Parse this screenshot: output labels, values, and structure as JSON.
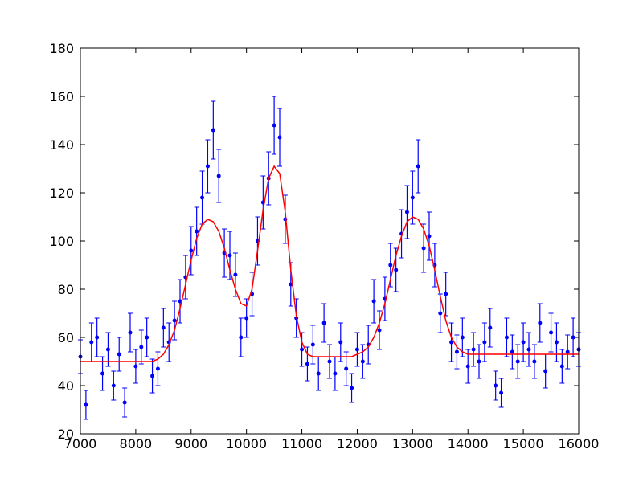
{
  "chart_data": {
    "type": "errorbar",
    "x": [
      7000,
      7100,
      7200,
      7300,
      7400,
      7500,
      7600,
      7700,
      7800,
      7900,
      8000,
      8100,
      8200,
      8300,
      8400,
      8500,
      8600,
      8700,
      8800,
      8900,
      9000,
      9100,
      9200,
      9300,
      9400,
      9500,
      9600,
      9700,
      9800,
      9900,
      10000,
      10100,
      10200,
      10300,
      10400,
      10500,
      10600,
      10700,
      10800,
      10900,
      11000,
      11100,
      11200,
      11300,
      11400,
      11500,
      11600,
      11700,
      11800,
      11900,
      12000,
      12100,
      12200,
      12300,
      12400,
      12500,
      12600,
      12700,
      12800,
      12900,
      13000,
      13100,
      13200,
      13300,
      13400,
      13500,
      13600,
      13700,
      13800,
      13900,
      14000,
      14100,
      14200,
      14300,
      14400,
      14500,
      14600,
      14700,
      14800,
      14900,
      15000,
      15100,
      15200,
      15300,
      15400,
      15500,
      15600,
      15700,
      15800,
      15900,
      16000
    ],
    "series": [
      {
        "color": "#0000ff",
        "values": [
          52,
          32,
          58,
          60,
          45,
          55,
          40,
          53,
          33,
          62,
          48,
          56,
          60,
          44,
          47,
          64,
          58,
          67,
          75,
          85,
          96,
          104,
          118,
          131,
          146,
          127,
          95,
          94,
          86,
          60,
          68,
          78,
          100,
          116,
          126,
          148,
          143,
          109,
          82,
          68,
          55,
          49,
          57,
          45,
          66,
          50,
          45,
          58,
          47,
          39,
          55,
          50,
          57,
          75,
          63,
          76,
          90,
          88,
          103,
          112,
          118,
          131,
          97,
          102,
          90,
          70,
          78,
          58,
          54,
          60,
          48,
          55,
          50,
          58,
          64,
          40,
          37,
          60,
          54,
          50,
          58,
          55,
          50,
          66,
          46,
          62,
          58,
          48,
          54,
          60,
          55
        ],
        "errors": [
          7,
          6,
          8,
          8,
          7,
          7,
          6,
          7,
          6,
          8,
          7,
          7,
          8,
          7,
          7,
          8,
          8,
          8,
          9,
          9,
          10,
          10,
          11,
          11,
          12,
          11,
          10,
          10,
          9,
          8,
          8,
          9,
          10,
          11,
          11,
          12,
          12,
          10,
          9,
          8,
          7,
          7,
          8,
          7,
          8,
          7,
          7,
          8,
          7,
          6,
          7,
          7,
          8,
          9,
          8,
          9,
          9,
          9,
          10,
          11,
          11,
          11,
          10,
          10,
          9,
          8,
          9,
          8,
          7,
          8,
          7,
          7,
          7,
          8,
          8,
          6,
          6,
          8,
          7,
          7,
          8,
          7,
          7,
          8,
          7,
          8,
          8,
          7,
          7,
          8,
          7
        ]
      },
      {
        "color": "#ff0000",
        "values": [
          50,
          50,
          50,
          50,
          50,
          50,
          50,
          50,
          50,
          50,
          50,
          50,
          50,
          50,
          51,
          53,
          57,
          63,
          72,
          82,
          92,
          101,
          107,
          109,
          108,
          104,
          97,
          88,
          80,
          74,
          73,
          80,
          96,
          113,
          126,
          131,
          128,
          112,
          88,
          69,
          58,
          53,
          52,
          52,
          52,
          52,
          52,
          52,
          52,
          52,
          53,
          54,
          56,
          60,
          66,
          74,
          84,
          94,
          102,
          108,
          110,
          109,
          105,
          98,
          88,
          77,
          67,
          60,
          56,
          54,
          53,
          53,
          53,
          53,
          53,
          53,
          53,
          53,
          53,
          53,
          53,
          53,
          53,
          53,
          53,
          53,
          53,
          53,
          53,
          53,
          53
        ]
      }
    ],
    "xlim": [
      7000,
      16000
    ],
    "xticks": [
      7000,
      8000,
      9000,
      10000,
      11000,
      12000,
      13000,
      14000,
      15000,
      16000
    ],
    "ylim": [
      20,
      180
    ],
    "yticks": [
      20,
      40,
      60,
      80,
      100,
      120,
      140,
      160,
      180
    ]
  }
}
